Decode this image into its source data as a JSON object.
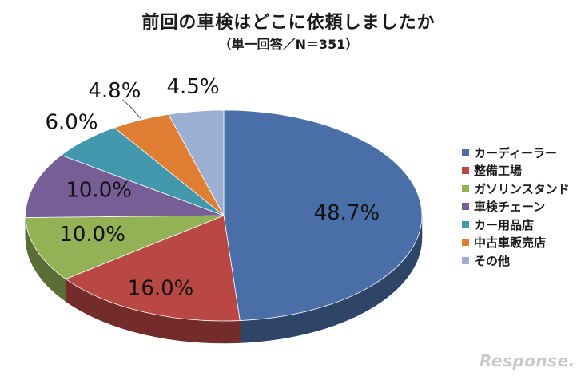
{
  "chart_data": {
    "type": "pie",
    "title": "前回の車検はどこに依頼しましたか",
    "subtitle": "（単一回答／N＝351）",
    "legend_position": "right",
    "slices": [
      {
        "name": "カーディーラー",
        "value": 48.7,
        "label": "48.7%",
        "color": "#4a6fa8"
      },
      {
        "name": "整備工場",
        "value": 16.0,
        "label": "16.0%",
        "color": "#b94744"
      },
      {
        "name": "ガソリンスタンド",
        "value": 10.0,
        "label": "10.0%",
        "color": "#93b255"
      },
      {
        "name": "車検チェーン",
        "value": 10.0,
        "label": "10.0%",
        "color": "#785e96"
      },
      {
        "name": "カー用品店",
        "value": 6.0,
        "label": "6.0%",
        "color": "#4398ad"
      },
      {
        "name": "中古車販売店",
        "value": 4.8,
        "label": "4.8%",
        "color": "#e07f33"
      },
      {
        "name": "その他",
        "value": 4.5,
        "label": "4.5%",
        "color": "#9bafd3"
      }
    ]
  },
  "watermark": "Response."
}
